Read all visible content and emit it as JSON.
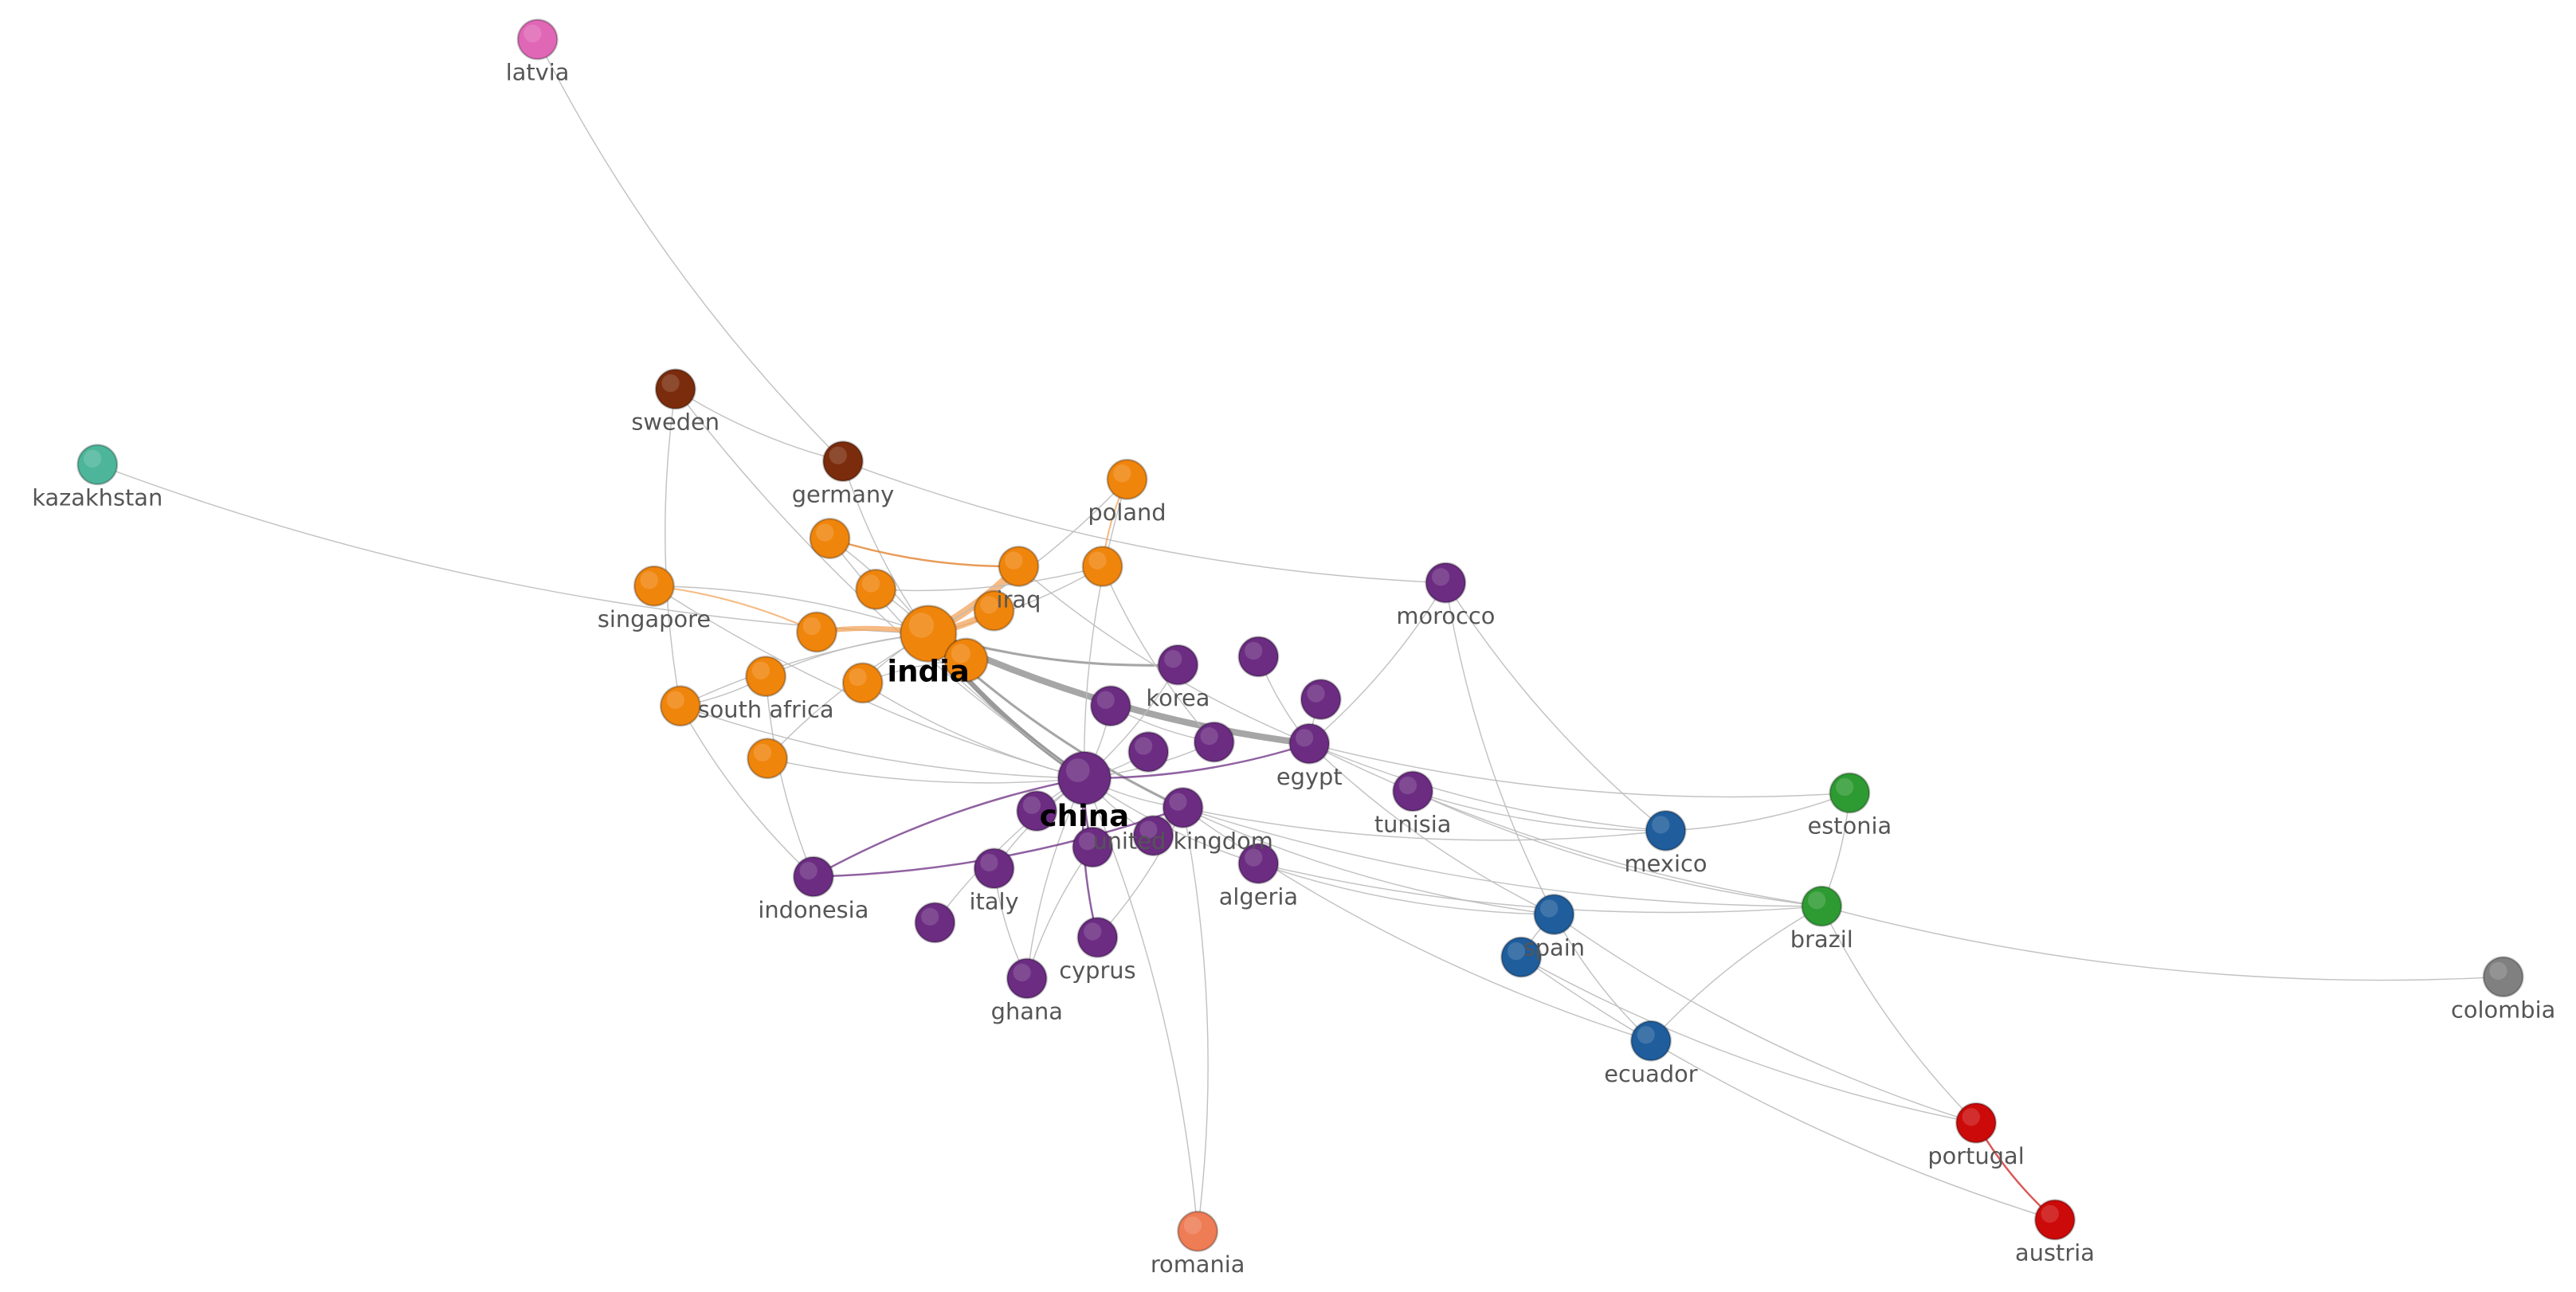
{
  "nodes": [
    {
      "label": "latvia"
    },
    {
      "label": "sweden"
    },
    {
      "label": "germany"
    },
    {
      "label": "kazakhstan"
    },
    {
      "label": "poland"
    },
    {
      "label": "singapore"
    },
    {
      "label": "iraq"
    },
    {
      "label": "india"
    },
    {
      "label": "morocco"
    },
    {
      "label": "south africa"
    },
    {
      "label": "korea"
    },
    {
      "label": "egypt"
    },
    {
      "label": "china"
    },
    {
      "label": "tunisia"
    },
    {
      "label": "estonia"
    },
    {
      "label": "mexico"
    },
    {
      "label": "united kingdom"
    },
    {
      "label": "algeria"
    },
    {
      "label": "indonesia"
    },
    {
      "label": "italy"
    },
    {
      "label": "brazil"
    },
    {
      "label": "spain"
    },
    {
      "label": "cyprus"
    },
    {
      "label": "ghana"
    },
    {
      "label": "colombia"
    },
    {
      "label": "ecuador"
    },
    {
      "label": "portugal"
    },
    {
      "label": "romania"
    },
    {
      "label": "austria"
    }
  ]
}
